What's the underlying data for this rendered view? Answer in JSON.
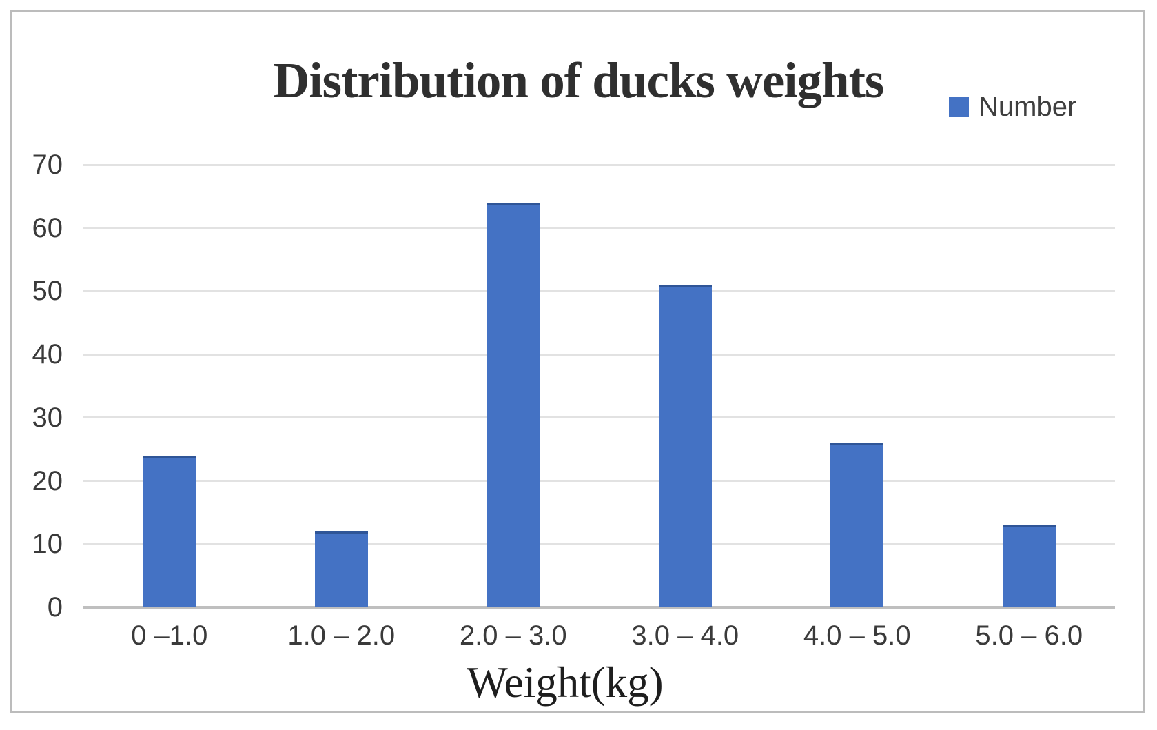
{
  "chart_data": {
    "type": "bar",
    "title": "Distribution of ducks weights",
    "categories": [
      "0 –1.0",
      "1.0 – 2.0",
      "2.0 – 3.0",
      "3.0 – 4.0",
      "4.0 – 5.0",
      "5.0 – 6.0"
    ],
    "series": [
      {
        "name": "Number",
        "values": [
          24,
          12,
          64,
          51,
          26,
          13
        ]
      }
    ],
    "xlabel": "Weight(kg)",
    "ylabel": "",
    "ylim": [
      0,
      70
    ],
    "yticks": [
      0,
      10,
      20,
      30,
      40,
      50,
      60,
      70
    ],
    "grid": true,
    "legend": {
      "position": "top-right",
      "label": "Number"
    },
    "colors": {
      "bar_fill": "#4472c4",
      "bar_edge": "#2f5597",
      "gridline": "#e2e2e2",
      "axis_line": "#bfbfbf",
      "text": "#3a3a3a",
      "frame_border": "#bcbcbc"
    }
  }
}
